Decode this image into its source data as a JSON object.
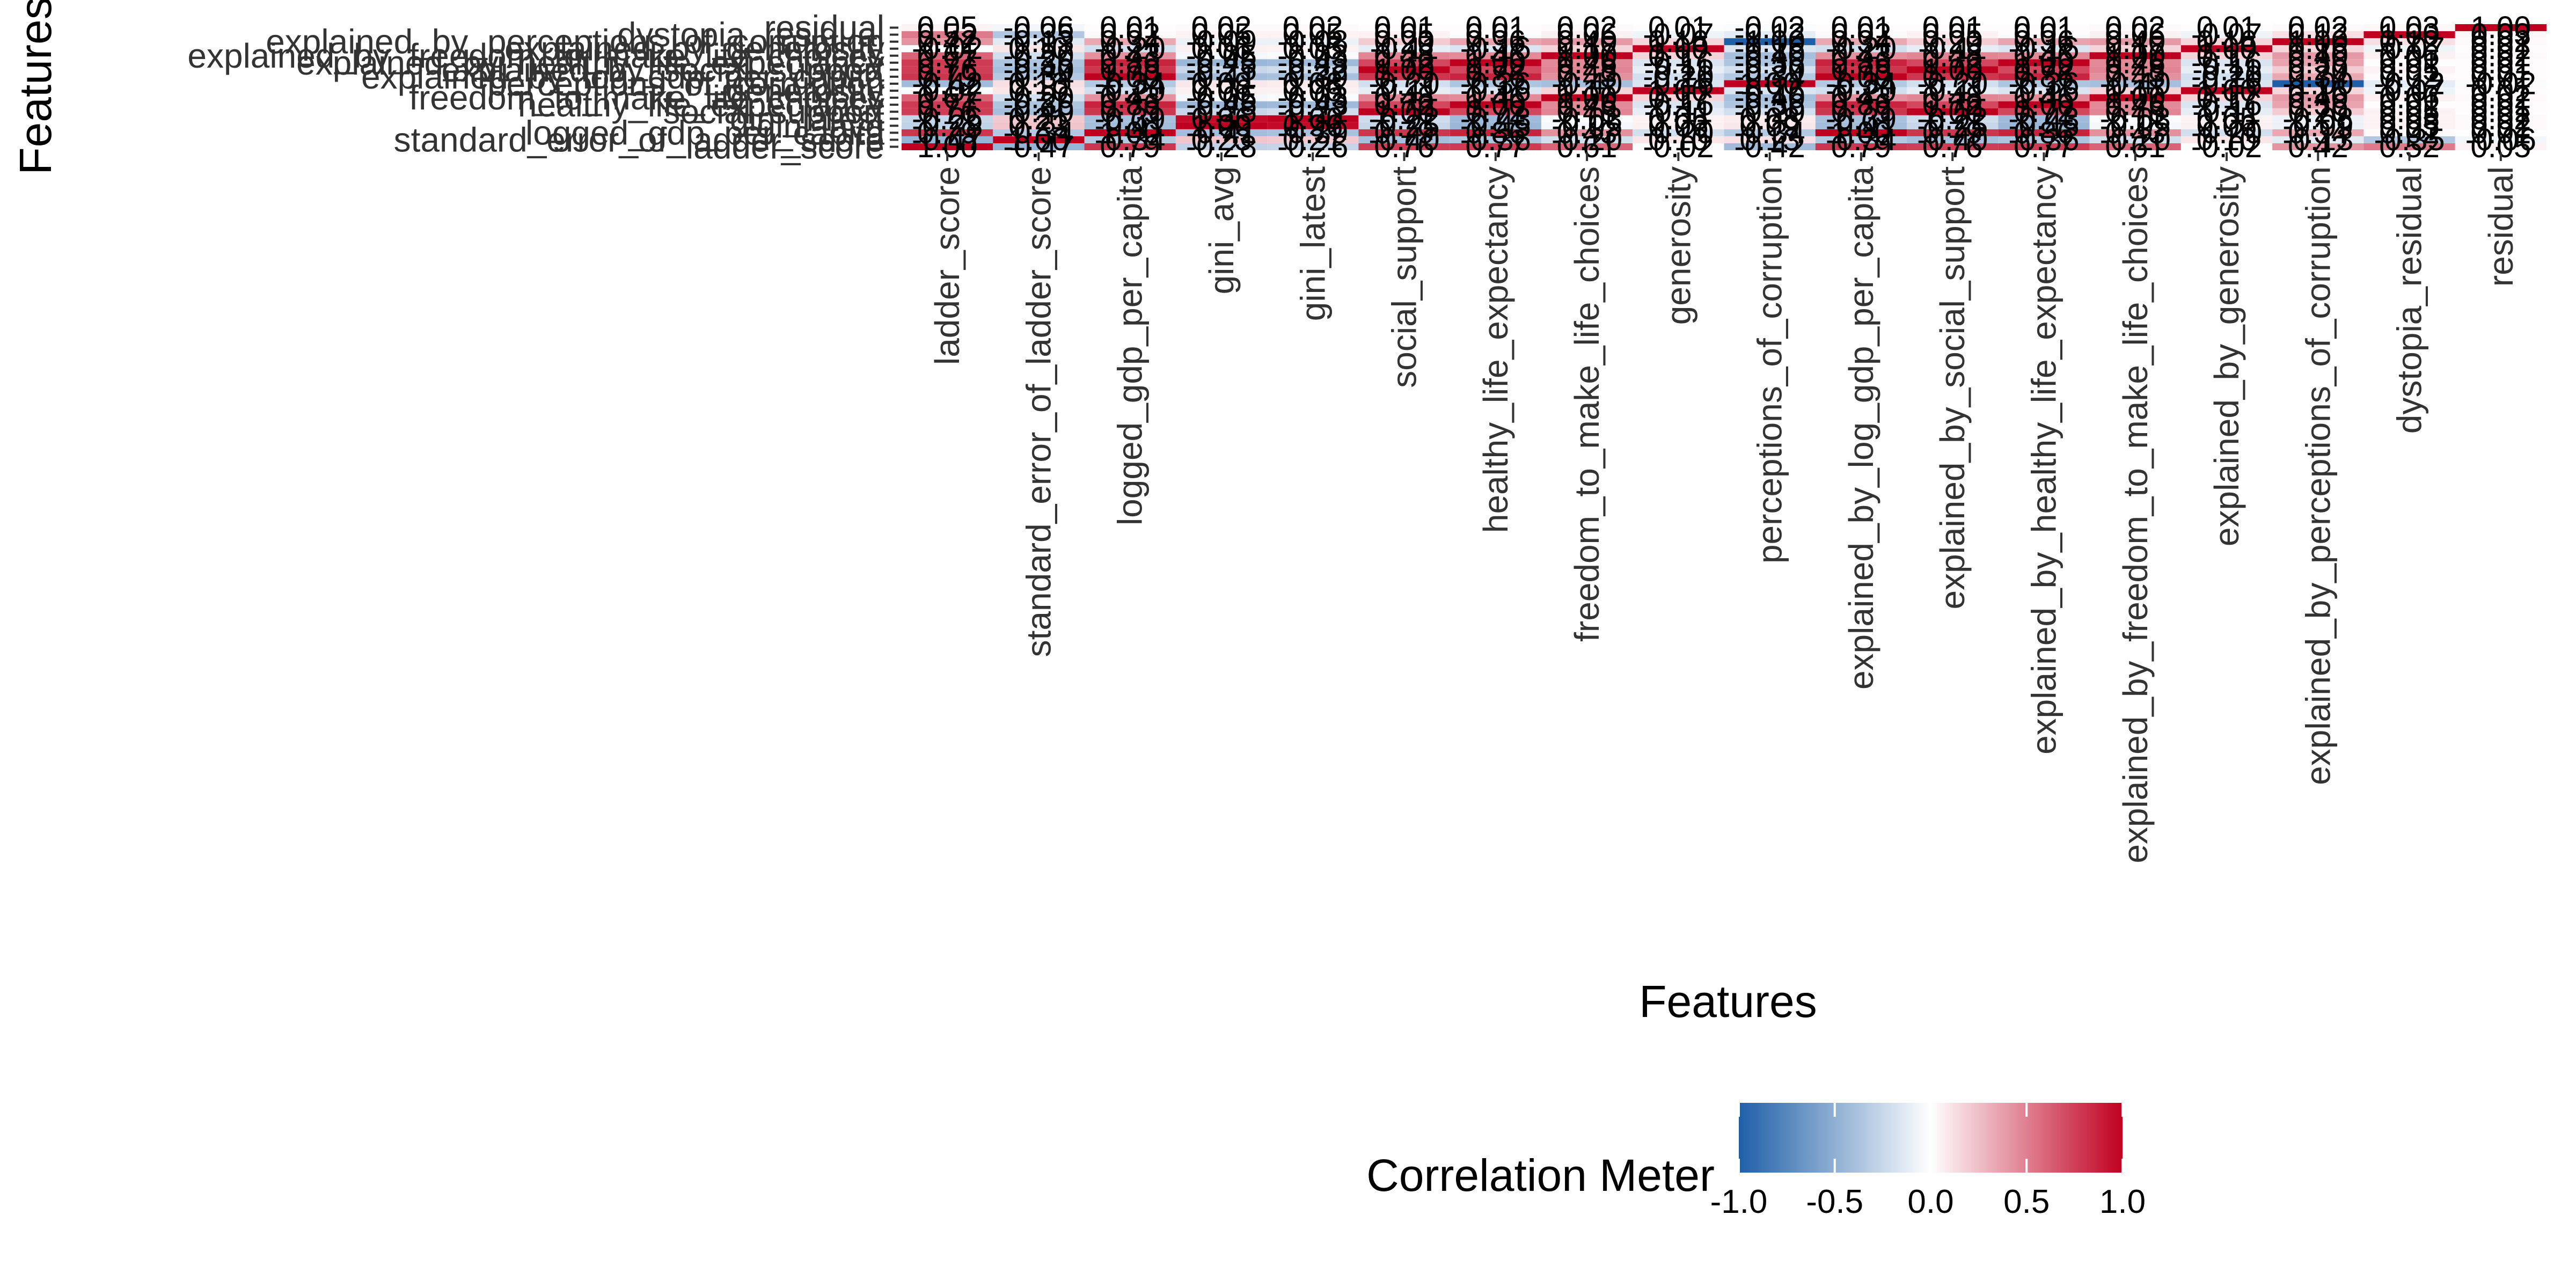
{
  "chart_data": {
    "type": "heatmap",
    "title": "",
    "xlabel": "Features",
    "ylabel": "Features",
    "features": [
      "ladder_score",
      "standard_error_of_ladder_score",
      "logged_gdp_per_capita",
      "gini_avg",
      "gini_latest",
      "social_support",
      "healthy_life_expectancy",
      "freedom_to_make_life_choices",
      "generosity",
      "perceptions_of_corruption",
      "explained_by_log_gdp_per_capita",
      "explained_by_social_support",
      "explained_by_healthy_life_expectancy",
      "explained_by_freedom_to_make_life_choices",
      "explained_by_generosity",
      "explained_by_perceptions_of_corruption",
      "dystopia_residual",
      "residual"
    ],
    "values": [
      [
        1.0,
        -0.47,
        0.79,
        -0.28,
        -0.26,
        0.76,
        0.77,
        0.61,
        -0.02,
        -0.42,
        0.79,
        0.76,
        0.77,
        0.61,
        -0.02,
        0.42,
        0.52,
        0.05
      ],
      [
        -0.47,
        1.0,
        -0.34,
        0.23,
        0.21,
        -0.4,
        -0.36,
        -0.2,
        0.1,
        0.13,
        -0.34,
        -0.4,
        -0.36,
        -0.2,
        0.1,
        -0.13,
        -0.35,
        -0.06
      ],
      [
        0.79,
        -0.34,
        1.0,
        -0.41,
        -0.39,
        0.79,
        0.86,
        0.43,
        -0.2,
        -0.34,
        1.0,
        0.79,
        0.86,
        0.43,
        -0.2,
        0.34,
        0.02,
        0.01
      ],
      [
        -0.28,
        0.23,
        -0.41,
        1.0,
        0.96,
        -0.25,
        -0.45,
        -0.05,
        0.06,
        0.09,
        -0.41,
        -0.25,
        -0.45,
        -0.05,
        0.06,
        -0.09,
        0.05,
        0.02
      ],
      [
        -0.26,
        0.21,
        -0.39,
        0.96,
        1.0,
        -0.22,
        -0.43,
        -0.03,
        0.05,
        0.08,
        -0.39,
        -0.22,
        -0.43,
        -0.03,
        0.05,
        -0.08,
        0.05,
        0.02
      ],
      [
        0.76,
        -0.4,
        0.79,
        -0.25,
        -0.22,
        1.0,
        0.72,
        0.48,
        -0.11,
        -0.2,
        0.79,
        1.0,
        0.72,
        0.48,
        -0.11,
        0.2,
        0.05,
        0.01
      ],
      [
        0.77,
        -0.36,
        0.86,
        -0.45,
        -0.43,
        0.72,
        1.0,
        0.46,
        -0.16,
        -0.36,
        0.86,
        0.72,
        1.0,
        0.46,
        -0.16,
        0.36,
        0.01,
        0.01
      ],
      [
        0.61,
        -0.2,
        0.43,
        -0.05,
        -0.03,
        0.48,
        0.46,
        1.0,
        0.17,
        -0.4,
        0.43,
        0.48,
        0.46,
        1.0,
        0.17,
        0.4,
        0.06,
        0.02
      ],
      [
        -0.02,
        0.1,
        -0.2,
        0.06,
        0.05,
        -0.11,
        -0.16,
        0.17,
        1.0,
        -0.16,
        -0.2,
        -0.11,
        -0.16,
        0.17,
        1.0,
        0.16,
        -0.07,
        0.01
      ],
      [
        -0.42,
        0.13,
        -0.34,
        0.09,
        0.08,
        -0.2,
        -0.36,
        -0.4,
        -0.16,
        1.0,
        -0.34,
        -0.2,
        -0.36,
        -0.4,
        -0.16,
        -1.0,
        -0.12,
        -0.02
      ],
      [
        0.79,
        -0.34,
        1.0,
        -0.41,
        -0.39,
        0.79,
        0.86,
        0.43,
        -0.2,
        -0.34,
        1.0,
        0.79,
        0.86,
        0.43,
        -0.2,
        0.34,
        0.02,
        0.01
      ],
      [
        0.76,
        -0.4,
        0.79,
        -0.25,
        -0.22,
        1.0,
        0.72,
        0.48,
        -0.11,
        -0.2,
        0.79,
        1.0,
        0.72,
        0.48,
        -0.11,
        0.2,
        0.05,
        0.01
      ],
      [
        0.77,
        -0.36,
        0.86,
        -0.45,
        -0.43,
        0.72,
        1.0,
        0.46,
        -0.16,
        -0.36,
        0.86,
        0.72,
        1.0,
        0.46,
        -0.16,
        0.36,
        0.01,
        0.01
      ],
      [
        0.61,
        -0.2,
        0.43,
        -0.05,
        -0.03,
        0.48,
        0.46,
        1.0,
        0.17,
        -0.4,
        0.43,
        0.48,
        0.46,
        1.0,
        0.17,
        0.4,
        0.06,
        0.02
      ],
      [
        -0.02,
        0.1,
        -0.2,
        0.06,
        0.05,
        -0.11,
        -0.16,
        0.17,
        1.0,
        -0.16,
        -0.2,
        -0.11,
        -0.16,
        0.17,
        1.0,
        0.16,
        -0.07,
        0.01
      ],
      [
        0.42,
        -0.13,
        0.34,
        -0.09,
        -0.08,
        0.2,
        0.36,
        0.4,
        0.16,
        -1.0,
        0.34,
        0.2,
        0.36,
        0.4,
        0.16,
        1.0,
        0.12,
        0.02
      ],
      [
        0.52,
        -0.35,
        0.02,
        0.05,
        0.05,
        0.05,
        0.01,
        0.06,
        -0.07,
        -0.12,
        0.02,
        0.05,
        0.01,
        0.06,
        -0.07,
        0.12,
        1.0,
        0.03
      ],
      [
        0.05,
        -0.06,
        0.01,
        0.02,
        0.02,
        0.01,
        0.01,
        0.02,
        0.01,
        -0.02,
        0.01,
        0.01,
        0.01,
        0.02,
        0.01,
        0.02,
        0.03,
        1.0
      ]
    ],
    "legend": {
      "title": "Correlation Meter",
      "range": [
        -1.0,
        1.0
      ],
      "ticks": [
        "-1.0",
        "-0.5",
        "0.0",
        "0.5",
        "1.0"
      ],
      "low_color": "#1f5fa8",
      "mid_color": "#ffffff",
      "high_color": "#c00020",
      "placement": "bottom"
    },
    "grid": false
  }
}
